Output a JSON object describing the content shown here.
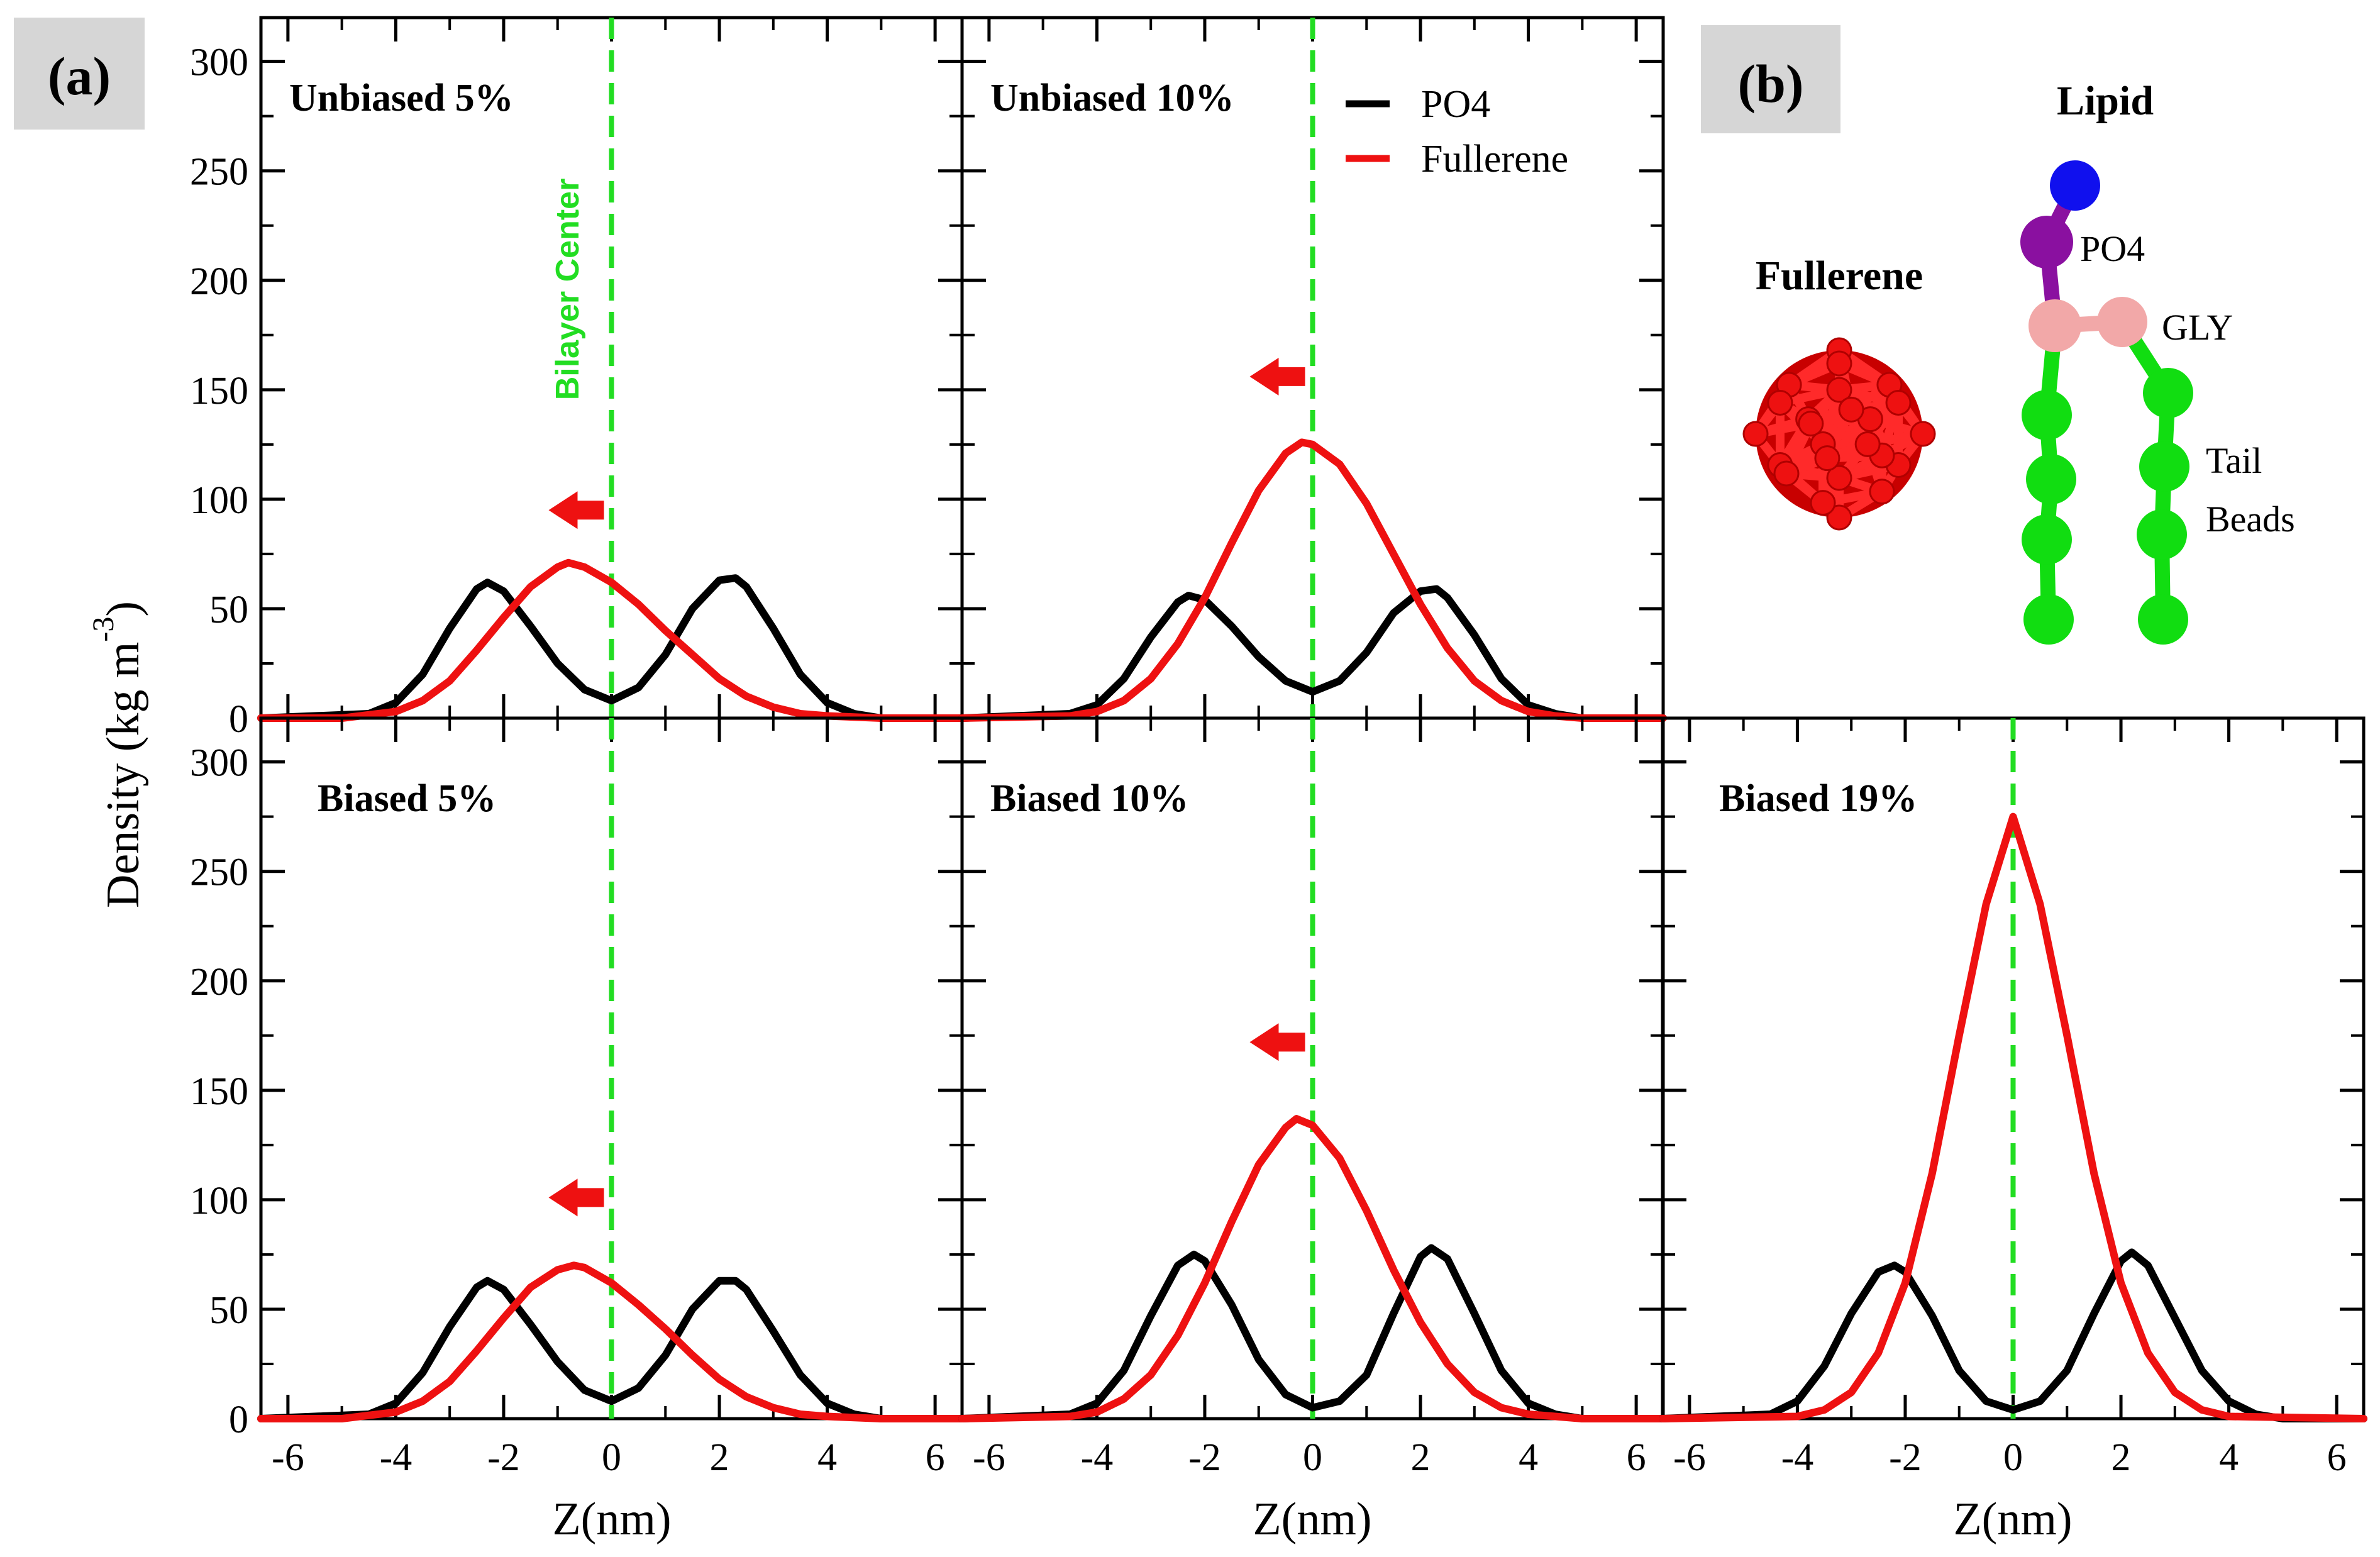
{
  "figure": {
    "panel_a_letter": "(a)",
    "panel_b_letter": "(b)",
    "ylabel": "Density (kg m",
    "ylabel_exp": "-3",
    "ylabel_close": ")",
    "xlabel": "Z(nm)",
    "center_line_label": "Bilayer Center"
  },
  "legend": {
    "items": [
      {
        "label": "PO4",
        "color": "#000000"
      },
      {
        "label": "Fullerene",
        "color": "#ee1111"
      }
    ]
  },
  "molecules": {
    "fullerene_label": "Fullerene",
    "lipid_label": "Lipid",
    "po4_label": "PO4",
    "gly_label": "GLY",
    "tail_label_1": "Tail",
    "tail_label_2": "Beads",
    "colors": {
      "head": "#1010ee",
      "po4": "#8a10a0",
      "gly": "#f2a8a8",
      "tail": "#11dd11",
      "fullerene": "#ee1111"
    }
  },
  "chart_data": [
    {
      "type": "line",
      "title": "Unbiased 5%",
      "xlim": [
        -6.5,
        6.5
      ],
      "ylim": [
        0,
        320
      ],
      "xticks": [
        -6,
        -4,
        -2,
        0,
        2,
        4,
        6
      ],
      "yticks": [
        0,
        50,
        100,
        150,
        200,
        250,
        300
      ],
      "arrow_y": 95,
      "series": [
        {
          "name": "PO4",
          "x": [
            -4.5,
            -4,
            -3.5,
            -3,
            -2.5,
            -2.3,
            -2,
            -1.5,
            -1,
            -0.5,
            0,
            0.5,
            1,
            1.5,
            2,
            2.3,
            2.5,
            3,
            3.5,
            4,
            4.5,
            5
          ],
          "y": [
            2,
            7,
            20,
            41,
            59,
            62,
            58,
            42,
            25,
            13,
            8,
            14,
            29,
            50,
            63,
            64,
            60,
            41,
            20,
            7,
            2,
            0
          ]
        },
        {
          "name": "Fullerene",
          "x": [
            -5,
            -4,
            -3.5,
            -3,
            -2.5,
            -2,
            -1.5,
            -1,
            -0.8,
            -0.5,
            0,
            0.5,
            1,
            1.5,
            2,
            2.5,
            3,
            3.5,
            4,
            5
          ],
          "y": [
            0,
            3,
            8,
            17,
            31,
            46,
            60,
            69,
            71,
            69,
            62,
            52,
            40,
            29,
            18,
            10,
            5,
            2,
            1,
            0
          ]
        }
      ]
    },
    {
      "type": "line",
      "title": "Unbiased 10%",
      "xlim": [
        -6.5,
        6.5
      ],
      "ylim": [
        0,
        320
      ],
      "xticks": [
        -6,
        -4,
        -2,
        0,
        2,
        4,
        6
      ],
      "yticks": [
        0,
        50,
        100,
        150,
        200,
        250,
        300
      ],
      "arrow_y": 156,
      "series": [
        {
          "name": "PO4",
          "x": [
            -4.5,
            -4,
            -3.5,
            -3,
            -2.5,
            -2.3,
            -2,
            -1.5,
            -1,
            -0.5,
            0,
            0.5,
            1,
            1.5,
            2,
            2.3,
            2.5,
            3,
            3.5,
            4,
            4.5,
            5
          ],
          "y": [
            2,
            6,
            18,
            37,
            53,
            56,
            54,
            42,
            28,
            17,
            12,
            17,
            30,
            48,
            58,
            59,
            55,
            38,
            18,
            6,
            2,
            0
          ]
        },
        {
          "name": "Fullerene",
          "x": [
            -4.5,
            -4,
            -3.5,
            -3,
            -2.5,
            -2,
            -1.5,
            -1,
            -0.5,
            -0.2,
            0,
            0.5,
            1,
            1.5,
            2,
            2.5,
            3,
            3.5,
            4,
            4.5,
            5
          ],
          "y": [
            1,
            3,
            8,
            18,
            34,
            55,
            80,
            104,
            121,
            126,
            125,
            116,
            98,
            75,
            52,
            32,
            17,
            8,
            3,
            1,
            0
          ]
        }
      ]
    },
    {
      "type": "line",
      "title": "Biased 5%",
      "xlim": [
        -6.5,
        6.5
      ],
      "ylim": [
        0,
        320
      ],
      "xticks": [
        -6,
        -4,
        -2,
        0,
        2,
        4,
        6
      ],
      "yticks": [
        0,
        50,
        100,
        150,
        200,
        250,
        300
      ],
      "arrow_y": 101,
      "series": [
        {
          "name": "PO4",
          "x": [
            -4.5,
            -4,
            -3.5,
            -3,
            -2.5,
            -2.3,
            -2,
            -1.5,
            -1,
            -0.5,
            0,
            0.5,
            1,
            1.5,
            2,
            2.3,
            2.5,
            3,
            3.5,
            4,
            4.5,
            5
          ],
          "y": [
            2,
            7,
            21,
            42,
            60,
            63,
            59,
            43,
            26,
            13,
            8,
            14,
            29,
            50,
            63,
            63,
            59,
            40,
            20,
            7,
            2,
            0
          ]
        },
        {
          "name": "Fullerene",
          "x": [
            -5,
            -4,
            -3.5,
            -3,
            -2.5,
            -2,
            -1.5,
            -1,
            -0.7,
            -0.5,
            0,
            0.5,
            1,
            1.5,
            2,
            2.5,
            3,
            3.5,
            4,
            5
          ],
          "y": [
            0,
            3,
            8,
            17,
            31,
            46,
            60,
            68,
            70,
            69,
            62,
            52,
            41,
            29,
            18,
            10,
            5,
            2,
            1,
            0
          ]
        }
      ]
    },
    {
      "type": "line",
      "title": "Biased 10%",
      "xlim": [
        -6.5,
        6.5
      ],
      "ylim": [
        0,
        320
      ],
      "xticks": [
        -6,
        -4,
        -2,
        0,
        2,
        4,
        6
      ],
      "yticks": [
        0,
        50,
        100,
        150,
        200,
        250,
        300
      ],
      "arrow_y": 172,
      "series": [
        {
          "name": "PO4",
          "x": [
            -4.5,
            -4,
            -3.5,
            -3,
            -2.5,
            -2.2,
            -2,
            -1.5,
            -1,
            -0.5,
            0,
            0.5,
            1,
            1.5,
            2,
            2.2,
            2.5,
            3,
            3.5,
            4,
            4.5,
            5
          ],
          "y": [
            2,
            7,
            22,
            47,
            70,
            75,
            72,
            52,
            27,
            11,
            5,
            8,
            20,
            48,
            74,
            78,
            73,
            48,
            22,
            7,
            2,
            0
          ]
        },
        {
          "name": "Fullerene",
          "x": [
            -4.5,
            -4,
            -3.5,
            -3,
            -2.5,
            -2,
            -1.5,
            -1,
            -0.5,
            -0.3,
            0,
            0.5,
            1,
            1.5,
            2,
            2.5,
            3,
            3.5,
            4,
            4.5,
            5
          ],
          "y": [
            1,
            3,
            9,
            20,
            38,
            62,
            90,
            116,
            133,
            137,
            134,
            119,
            95,
            68,
            44,
            25,
            12,
            5,
            2,
            1,
            0
          ]
        }
      ]
    },
    {
      "type": "line",
      "title": "Biased 19%",
      "xlim": [
        -6.5,
        6.5
      ],
      "ylim": [
        0,
        320
      ],
      "xticks": [
        -6,
        -4,
        -2,
        0,
        2,
        4,
        6
      ],
      "yticks": [
        0,
        50,
        100,
        150,
        200,
        250,
        300
      ],
      "series": [
        {
          "name": "PO4",
          "x": [
            -4.5,
            -4,
            -3.5,
            -3,
            -2.5,
            -2.2,
            -2,
            -1.5,
            -1,
            -0.5,
            0,
            0.5,
            1,
            1.5,
            2,
            2.2,
            2.5,
            3,
            3.5,
            4,
            4.5,
            5
          ],
          "y": [
            2,
            8,
            24,
            48,
            67,
            70,
            67,
            47,
            22,
            8,
            4,
            8,
            22,
            48,
            72,
            76,
            70,
            46,
            22,
            8,
            2,
            0
          ]
        },
        {
          "name": "Fullerene",
          "x": [
            -4,
            -3.5,
            -3,
            -2.5,
            -2,
            -1.5,
            -1,
            -0.5,
            0,
            0.5,
            1,
            1.5,
            2,
            2.5,
            3,
            3.5,
            4
          ],
          "y": [
            1,
            4,
            12,
            30,
            62,
            112,
            175,
            235,
            275,
            235,
            175,
            112,
            62,
            30,
            12,
            4,
            1
          ]
        }
      ]
    }
  ]
}
